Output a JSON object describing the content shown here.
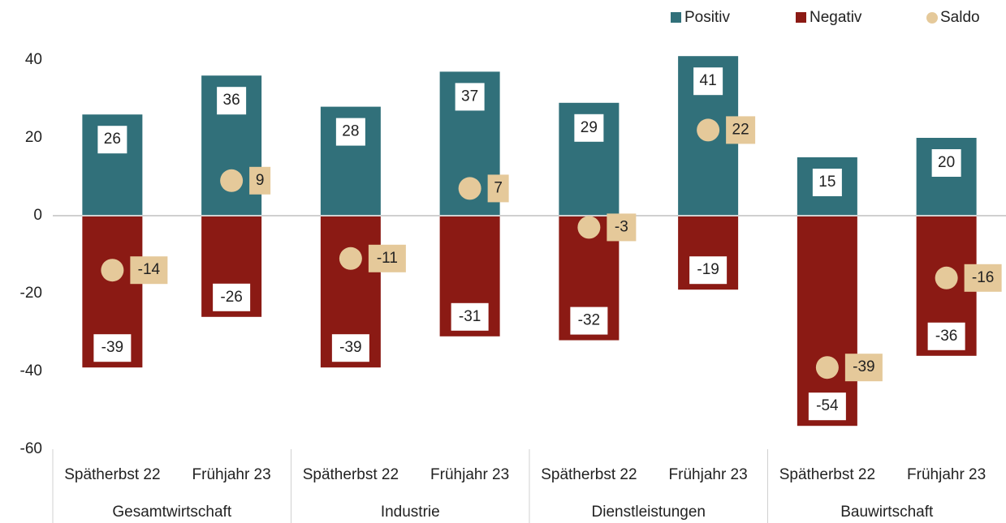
{
  "chart_data": {
    "type": "bar",
    "categories": [
      "Spätherbst 22",
      "Frühjahr 23",
      "Spätherbst 22",
      "Frühjahr 23",
      "Spätherbst 22",
      "Frühjahr 23",
      "Spätherbst 22",
      "Frühjahr 23"
    ],
    "groups": [
      "Gesamtwirtschaft",
      "Industrie",
      "Dienstleistungen",
      "Bauwirtschaft"
    ],
    "series": [
      {
        "name": "Positiv",
        "color": "#31707a",
        "values": [
          26,
          36,
          28,
          37,
          29,
          41,
          15,
          20
        ]
      },
      {
        "name": "Negativ",
        "color": "#8b1a14",
        "values": [
          -39,
          -26,
          -39,
          -31,
          -32,
          -19,
          -54,
          -36
        ]
      },
      {
        "name": "Saldo",
        "color": "#e5c99a",
        "values": [
          -14,
          9,
          -11,
          7,
          -3,
          22,
          -39,
          -16
        ]
      }
    ],
    "ylim": [
      -60,
      40
    ],
    "yticks": [
      -60,
      -40,
      -20,
      0,
      20,
      40
    ],
    "legend": "top-right"
  }
}
